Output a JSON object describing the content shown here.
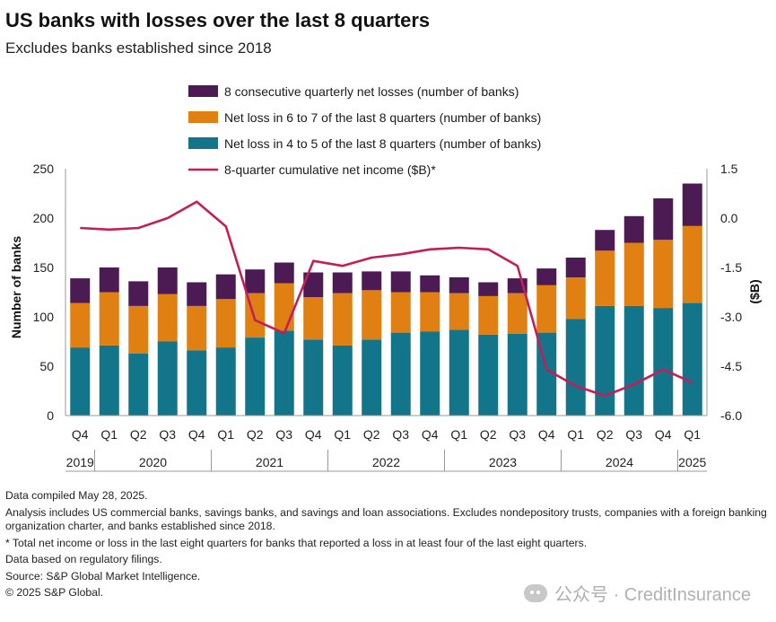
{
  "title": "US banks with losses over the last 8 quarters",
  "subtitle": "Excludes banks established since 2018",
  "notes": [
    "Data compiled May 28, 2025.",
    "Analysis includes US commercial banks, savings banks, and savings and loan associations. Excludes nondepository trusts, companies with a foreign banking organization charter, and banks established since 2018.",
    "* Total net income or loss in the last eight quarters for banks that reported a loss in at least four of the last eight quarters.",
    "Data based on regulatory filings.",
    "Source: S&P Global Market Intelligence.",
    "© 2025 S&P Global."
  ],
  "watermark": "公众号 · CreditInsurance",
  "chart_data": {
    "type": "bar",
    "stacked": true,
    "categories": [
      "Q4",
      "Q1",
      "Q2",
      "Q3",
      "Q4",
      "Q1",
      "Q2",
      "Q3",
      "Q4",
      "Q1",
      "Q2",
      "Q3",
      "Q4",
      "Q1",
      "Q2",
      "Q3",
      "Q4",
      "Q1",
      "Q2",
      "Q3",
      "Q4",
      "Q1"
    ],
    "years": [
      {
        "label": "2019",
        "start": 0,
        "end": 0
      },
      {
        "label": "2020",
        "start": 1,
        "end": 4
      },
      {
        "label": "2021",
        "start": 5,
        "end": 8
      },
      {
        "label": "2022",
        "start": 9,
        "end": 12
      },
      {
        "label": "2023",
        "start": 13,
        "end": 16
      },
      {
        "label": "2024",
        "start": 17,
        "end": 20
      },
      {
        "label": "2025",
        "start": 21,
        "end": 21
      }
    ],
    "series": [
      {
        "name": "Net loss in 4 to 5 of the last 8 quarters (number of banks)",
        "color": "#13758a",
        "values": [
          69,
          71,
          63,
          75,
          66,
          69,
          79,
          86,
          77,
          71,
          77,
          84,
          85,
          87,
          82,
          83,
          84,
          98,
          111,
          111,
          109,
          114
        ]
      },
      {
        "name": "Net loss in 6 to 7 of the last 8 quarters (number of banks)",
        "color": "#e07f12",
        "values": [
          45,
          54,
          48,
          48,
          45,
          49,
          45,
          48,
          43,
          53,
          50,
          41,
          40,
          37,
          39,
          41,
          48,
          42,
          56,
          64,
          69,
          78
        ]
      },
      {
        "name": "8 consecutive quarterly net losses (number of banks)",
        "color": "#4d1b54",
        "values": [
          25,
          25,
          25,
          27,
          24,
          25,
          24,
          21,
          25,
          21,
          19,
          21,
          17,
          16,
          14,
          15,
          17,
          20,
          21,
          27,
          42,
          43
        ]
      }
    ],
    "line": {
      "name": "8-quarter cumulative net income ($B)*",
      "color": "#c41e5a",
      "values": [
        -0.3,
        -0.35,
        -0.3,
        0.0,
        0.5,
        -0.25,
        -3.1,
        -3.5,
        -1.3,
        -1.45,
        -1.2,
        -1.1,
        -0.95,
        -0.9,
        -0.95,
        -1.45,
        -4.6,
        -5.1,
        -5.4,
        -5.05,
        -4.6,
        -5.0
      ]
    },
    "ylabel": "Number of banks",
    "ylim": [
      0,
      250
    ],
    "yticks": [
      0,
      50,
      100,
      150,
      200,
      250
    ],
    "y2label": "($B)",
    "y2lim": [
      -6.0,
      1.5
    ],
    "y2ticks": [
      "1.5",
      "0.0",
      "-1.5",
      "-3.0",
      "-4.5",
      "-6.0"
    ],
    "legend_placement": "top",
    "grid": false
  }
}
